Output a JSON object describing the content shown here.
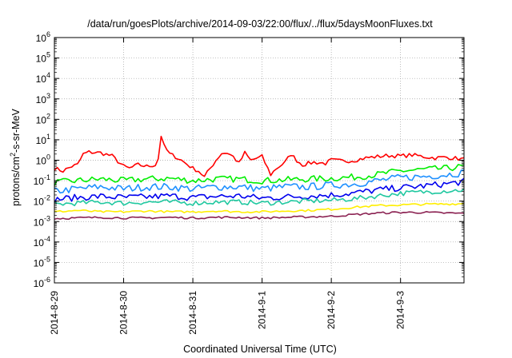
{
  "chart_data": {
    "type": "line",
    "title": "/data/run/goesPlots/archive/2014-09-03/22:00/flux/../flux/5daysMoonFluxes.txt",
    "xlabel": "Coordinated Universal Time (UTC)",
    "ylabel_parts": {
      "pre": "protons/cm",
      "sup": "2",
      "post": "-s-sr-MeV"
    },
    "yscale": "log",
    "ylim": [
      1e-06,
      1000000.0
    ],
    "y_ticks": [
      {
        "value": 1e-06,
        "base": "10",
        "exp": "-6"
      },
      {
        "value": 1e-05,
        "base": "10",
        "exp": "-5"
      },
      {
        "value": 0.0001,
        "base": "10",
        "exp": "-4"
      },
      {
        "value": 0.001,
        "base": "10",
        "exp": "-3"
      },
      {
        "value": 0.01,
        "base": "10",
        "exp": "-2"
      },
      {
        "value": 0.1,
        "base": "10",
        "exp": "-1"
      },
      {
        "value": 1.0,
        "base": "10",
        "exp": "0"
      },
      {
        "value": 10.0,
        "base": "10",
        "exp": "1"
      },
      {
        "value": 100.0,
        "base": "10",
        "exp": "2"
      },
      {
        "value": 1000.0,
        "base": "10",
        "exp": "3"
      },
      {
        "value": 10000.0,
        "base": "10",
        "exp": "4"
      },
      {
        "value": 100000.0,
        "base": "10",
        "exp": "5"
      },
      {
        "value": 1000000.0,
        "base": "10",
        "exp": "6"
      }
    ],
    "xlim": [
      "2014-08-29",
      "2014-09-03 22:00"
    ],
    "x_ticks": [
      {
        "value": "2014-08-29",
        "label": "2014-8-29"
      },
      {
        "value": "2014-08-30",
        "label": "2014-8-30"
      },
      {
        "value": "2014-08-31",
        "label": "2014-8-31"
      },
      {
        "value": "2014-09-01",
        "label": "2014-9-1"
      },
      {
        "value": "2014-09-02",
        "label": "2014-9-2"
      },
      {
        "value": "2014-09-03",
        "label": "2014-9-3"
      }
    ],
    "grid": true,
    "series": [
      {
        "color": "#ff0000",
        "points": [
          [
            "2014-08-29 00:00",
            0.4
          ],
          [
            "2014-08-29 03:00",
            0.3
          ],
          [
            "2014-08-29 06:00",
            0.5
          ],
          [
            "2014-08-29 08:00",
            0.6
          ],
          [
            "2014-08-29 10:00",
            2.0
          ],
          [
            "2014-08-29 12:00",
            2.5
          ],
          [
            "2014-08-29 16:00",
            2.3
          ],
          [
            "2014-08-29 20:00",
            1.6
          ],
          [
            "2014-08-30 00:00",
            0.5
          ],
          [
            "2014-08-30 02:00",
            0.4
          ],
          [
            "2014-08-30 05:00",
            0.6
          ],
          [
            "2014-08-30 08:00",
            0.5
          ],
          [
            "2014-08-30 11:00",
            0.6
          ],
          [
            "2014-08-30 12:00",
            1.2
          ],
          [
            "2014-08-30 13:00",
            16.0
          ],
          [
            "2014-08-30 14:00",
            5.0
          ],
          [
            "2014-08-30 16:00",
            2.0
          ],
          [
            "2014-08-30 18:00",
            1.5
          ],
          [
            "2014-08-30 20:00",
            1.0
          ],
          [
            "2014-08-31 00:00",
            0.4
          ],
          [
            "2014-08-31 02:00",
            0.3
          ],
          [
            "2014-08-31 04:00",
            0.15
          ],
          [
            "2014-08-31 06:00",
            0.4
          ],
          [
            "2014-08-31 08:00",
            1.0
          ],
          [
            "2014-08-31 10:00",
            2.2
          ],
          [
            "2014-08-31 12:00",
            2.3
          ],
          [
            "2014-08-31 14:00",
            1.5
          ],
          [
            "2014-08-31 16:00",
            0.7
          ],
          [
            "2014-08-31 18:00",
            2.3
          ],
          [
            "2014-08-31 20:00",
            1.0
          ],
          [
            "2014-09-01 00:00",
            1.5
          ],
          [
            "2014-09-01 03:00",
            0.2
          ],
          [
            "2014-09-01 05:00",
            0.4
          ],
          [
            "2014-09-01 08:00",
            0.8
          ],
          [
            "2014-09-01 10:00",
            2.0
          ],
          [
            "2014-09-01 12:00",
            1.0
          ],
          [
            "2014-09-01 14:00",
            0.6
          ],
          [
            "2014-09-01 18:00",
            0.8
          ],
          [
            "2014-09-01 22:00",
            0.7
          ],
          [
            "2014-09-02 00:00",
            1.0
          ],
          [
            "2014-09-02 04:00",
            0.9
          ],
          [
            "2014-09-02 08:00",
            1.0
          ],
          [
            "2014-09-02 12:00",
            1.3
          ],
          [
            "2014-09-02 16:00",
            1.5
          ],
          [
            "2014-09-02 20:00",
            1.7
          ],
          [
            "2014-09-03 00:00",
            1.6
          ],
          [
            "2014-09-03 04:00",
            1.8
          ],
          [
            "2014-09-03 08:00",
            1.5
          ],
          [
            "2014-09-03 12:00",
            1.3
          ],
          [
            "2014-09-03 16:00",
            1.4
          ],
          [
            "2014-09-03 18:00",
            1.3
          ],
          [
            "2014-09-03 22:00",
            1.1
          ]
        ]
      },
      {
        "color": "#00ee00",
        "points": [
          [
            "2014-08-29 00:00",
            0.08
          ],
          [
            "2014-08-29 08:00",
            0.1
          ],
          [
            "2014-08-29 16:00",
            0.12
          ],
          [
            "2014-08-30 00:00",
            0.1
          ],
          [
            "2014-08-30 08:00",
            0.12
          ],
          [
            "2014-08-30 16:00",
            0.13
          ],
          [
            "2014-08-31 00:00",
            0.1
          ],
          [
            "2014-08-31 08:00",
            0.12
          ],
          [
            "2014-08-31 16:00",
            0.12
          ],
          [
            "2014-09-01 00:00",
            0.1
          ],
          [
            "2014-09-01 08:00",
            0.11
          ],
          [
            "2014-09-01 16:00",
            0.12
          ],
          [
            "2014-09-02 00:00",
            0.13
          ],
          [
            "2014-09-02 08:00",
            0.15
          ],
          [
            "2014-09-02 16:00",
            0.2
          ],
          [
            "2014-09-03 00:00",
            0.3
          ],
          [
            "2014-09-03 08:00",
            0.35
          ],
          [
            "2014-09-03 16:00",
            0.4
          ],
          [
            "2014-09-03 22:00",
            0.5
          ]
        ]
      },
      {
        "color": "#1e90ff",
        "points": [
          [
            "2014-08-29 00:00",
            0.03
          ],
          [
            "2014-08-29 08:00",
            0.04
          ],
          [
            "2014-08-29 16:00",
            0.05
          ],
          [
            "2014-08-30 00:00",
            0.04
          ],
          [
            "2014-08-30 08:00",
            0.05
          ],
          [
            "2014-08-30 16:00",
            0.05
          ],
          [
            "2014-08-31 00:00",
            0.04
          ],
          [
            "2014-08-31 08:00",
            0.05
          ],
          [
            "2014-08-31 16:00",
            0.05
          ],
          [
            "2014-09-01 00:00",
            0.04
          ],
          [
            "2014-09-01 08:00",
            0.05
          ],
          [
            "2014-09-01 16:00",
            0.05
          ],
          [
            "2014-09-02 00:00",
            0.06
          ],
          [
            "2014-09-02 08:00",
            0.07
          ],
          [
            "2014-09-02 16:00",
            0.1
          ],
          [
            "2014-09-03 00:00",
            0.14
          ],
          [
            "2014-09-03 08:00",
            0.16
          ],
          [
            "2014-09-03 16:00",
            0.2
          ],
          [
            "2014-09-03 22:00",
            0.25
          ]
        ]
      },
      {
        "color": "#0000ee",
        "points": [
          [
            "2014-08-29 00:00",
            0.012
          ],
          [
            "2014-08-29 08:00",
            0.015
          ],
          [
            "2014-08-29 16:00",
            0.017
          ],
          [
            "2014-08-30 00:00",
            0.015
          ],
          [
            "2014-08-30 08:00",
            0.016
          ],
          [
            "2014-08-30 16:00",
            0.018
          ],
          [
            "2014-08-31 00:00",
            0.015
          ],
          [
            "2014-08-31 08:00",
            0.017
          ],
          [
            "2014-08-31 16:00",
            0.018
          ],
          [
            "2014-09-01 00:00",
            0.014
          ],
          [
            "2014-09-01 08:00",
            0.016
          ],
          [
            "2014-09-01 16:00",
            0.018
          ],
          [
            "2014-09-02 00:00",
            0.02
          ],
          [
            "2014-09-02 08:00",
            0.025
          ],
          [
            "2014-09-02 16:00",
            0.035
          ],
          [
            "2014-09-03 00:00",
            0.045
          ],
          [
            "2014-09-03 08:00",
            0.055
          ],
          [
            "2014-09-03 16:00",
            0.07
          ],
          [
            "2014-09-03 22:00",
            0.09
          ]
        ]
      },
      {
        "color": "#20c8a0",
        "points": [
          [
            "2014-08-29 00:00",
            0.007
          ],
          [
            "2014-08-29 08:00",
            0.008
          ],
          [
            "2014-08-29 16:00",
            0.009
          ],
          [
            "2014-08-30 00:00",
            0.008
          ],
          [
            "2014-08-30 08:00",
            0.009
          ],
          [
            "2014-08-30 16:00",
            0.009
          ],
          [
            "2014-08-31 00:00",
            0.008
          ],
          [
            "2014-08-31 08:00",
            0.009
          ],
          [
            "2014-08-31 16:00",
            0.009
          ],
          [
            "2014-09-01 00:00",
            0.008
          ],
          [
            "2014-09-01 08:00",
            0.009
          ],
          [
            "2014-09-01 16:00",
            0.01
          ],
          [
            "2014-09-02 00:00",
            0.011
          ],
          [
            "2014-09-02 08:00",
            0.013
          ],
          [
            "2014-09-02 16:00",
            0.018
          ],
          [
            "2014-09-03 00:00",
            0.024
          ],
          [
            "2014-09-03 08:00",
            0.028
          ],
          [
            "2014-09-03 16:00",
            0.032
          ],
          [
            "2014-09-03 22:00",
            0.035
          ]
        ]
      },
      {
        "color": "#ffee00",
        "points": [
          [
            "2014-08-29 00:00",
            0.003
          ],
          [
            "2014-08-29 08:00",
            0.0035
          ],
          [
            "2014-08-29 16:00",
            0.003
          ],
          [
            "2014-08-30 00:00",
            0.003
          ],
          [
            "2014-08-30 08:00",
            0.0033
          ],
          [
            "2014-08-30 16:00",
            0.003
          ],
          [
            "2014-08-31 00:00",
            0.003
          ],
          [
            "2014-08-31 08:00",
            0.0033
          ],
          [
            "2014-08-31 16:00",
            0.003
          ],
          [
            "2014-09-01 00:00",
            0.003
          ],
          [
            "2014-09-01 08:00",
            0.0033
          ],
          [
            "2014-09-01 16:00",
            0.0035
          ],
          [
            "2014-09-02 00:00",
            0.004
          ],
          [
            "2014-09-02 08:00",
            0.005
          ],
          [
            "2014-09-02 16:00",
            0.006
          ],
          [
            "2014-09-03 00:00",
            0.0065
          ],
          [
            "2014-09-03 08:00",
            0.007
          ],
          [
            "2014-09-03 16:00",
            0.0072
          ],
          [
            "2014-09-03 22:00",
            0.0075
          ]
        ]
      },
      {
        "color": "#8b2252",
        "points": [
          [
            "2014-08-29 00:00",
            0.0014
          ],
          [
            "2014-08-29 08:00",
            0.0015
          ],
          [
            "2014-08-29 16:00",
            0.0016
          ],
          [
            "2014-08-30 00:00",
            0.0015
          ],
          [
            "2014-08-30 08:00",
            0.0015
          ],
          [
            "2014-08-30 16:00",
            0.0016
          ],
          [
            "2014-08-31 00:00",
            0.0015
          ],
          [
            "2014-08-31 08:00",
            0.0016
          ],
          [
            "2014-08-31 16:00",
            0.0016
          ],
          [
            "2014-09-01 00:00",
            0.0015
          ],
          [
            "2014-09-01 08:00",
            0.0016
          ],
          [
            "2014-09-01 16:00",
            0.0017
          ],
          [
            "2014-09-02 00:00",
            0.0018
          ],
          [
            "2014-09-02 08:00",
            0.0022
          ],
          [
            "2014-09-02 16:00",
            0.0026
          ],
          [
            "2014-09-03 00:00",
            0.0028
          ],
          [
            "2014-09-03 08:00",
            0.0028
          ],
          [
            "2014-09-03 16:00",
            0.0026
          ],
          [
            "2014-09-03 22:00",
            0.0025
          ]
        ]
      }
    ]
  }
}
